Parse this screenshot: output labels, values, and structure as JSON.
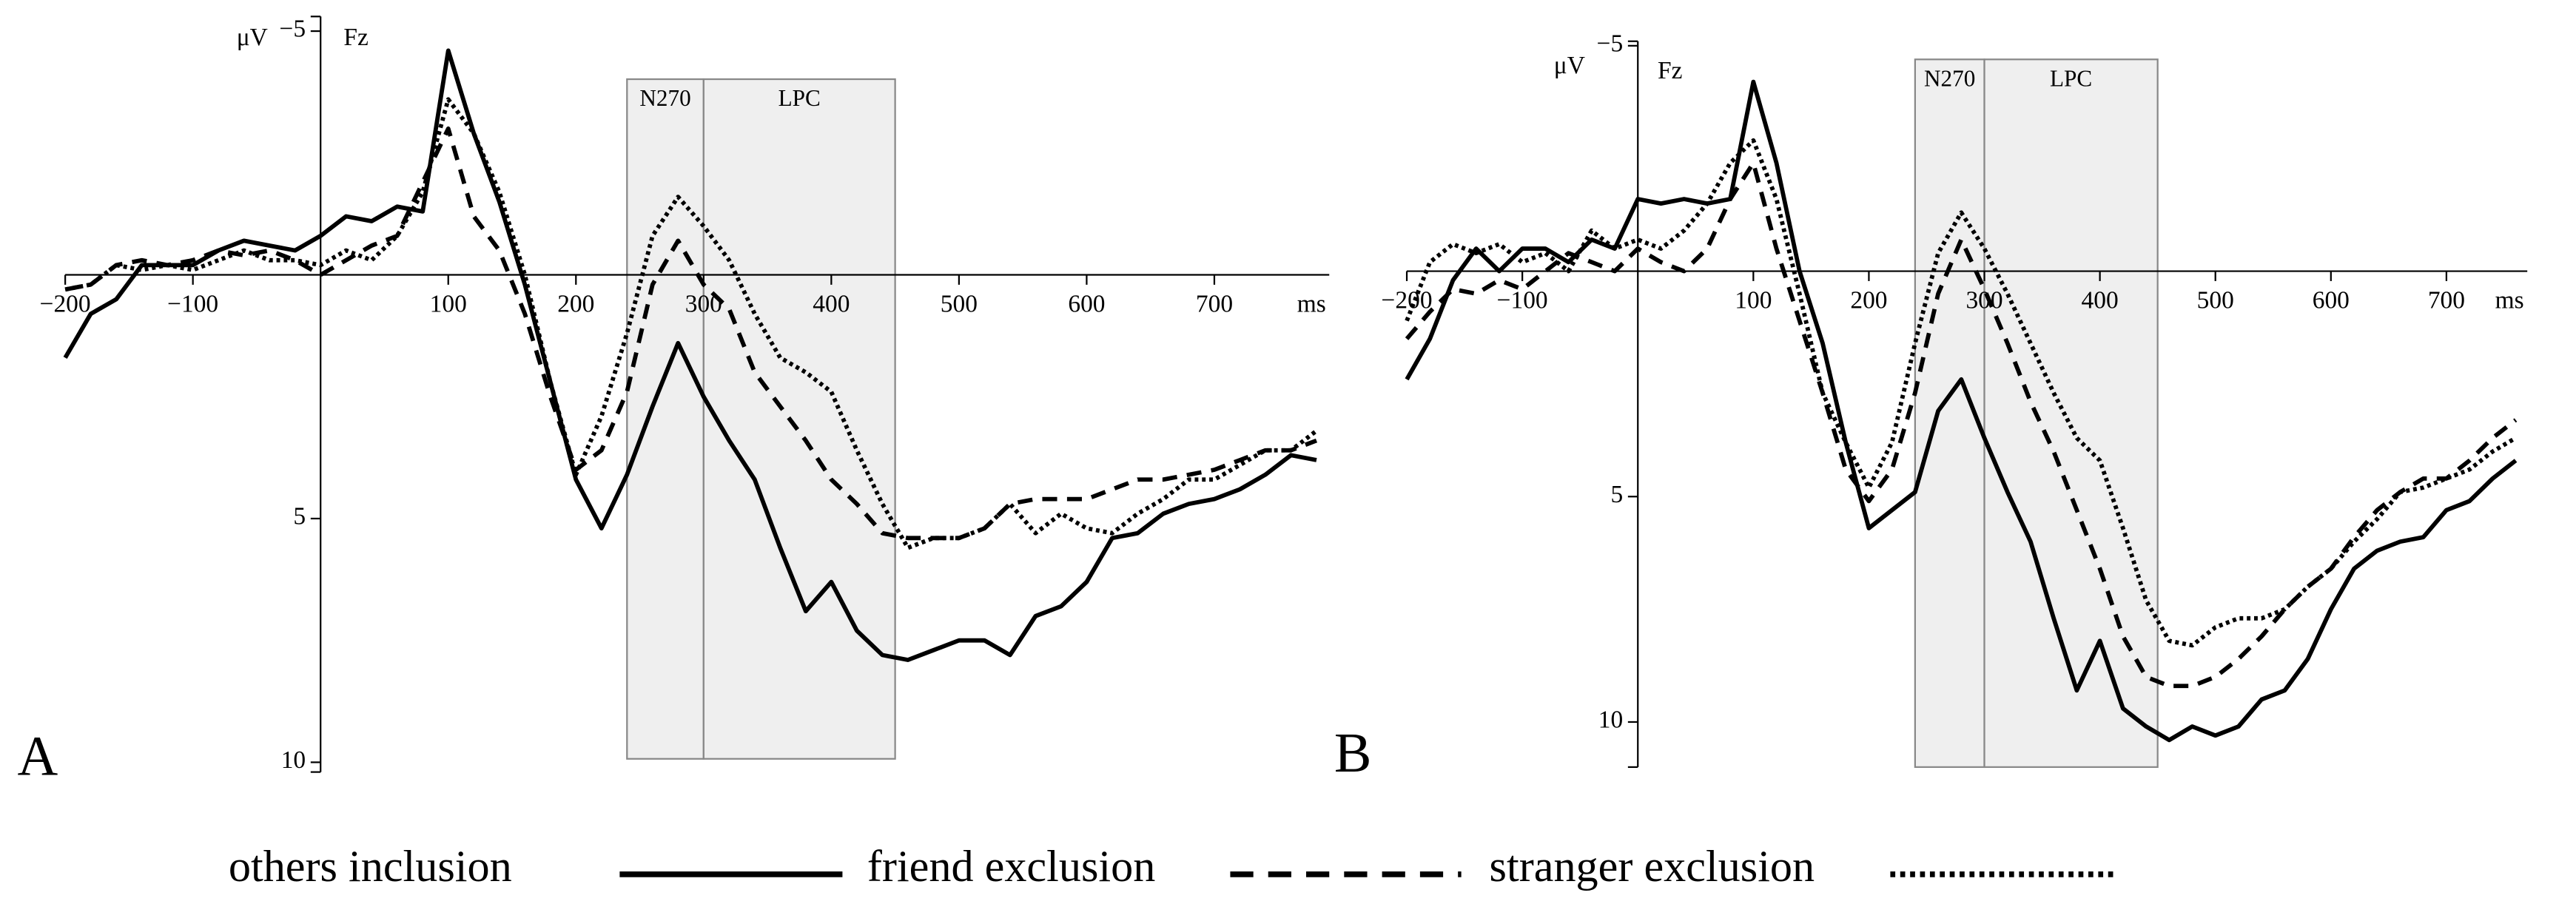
{
  "chart_data": [
    {
      "type": "line",
      "panel_label": "A",
      "channel": "Fz",
      "y_unit": "μV",
      "x_unit": "ms",
      "y_inverted": true,
      "xlim": [
        -200,
        790
      ],
      "ylim": [
        -5.3,
        10.2
      ],
      "xticks": [
        {
          "value": -200,
          "label": "−200"
        },
        {
          "value": -100,
          "label": "−100"
        },
        100,
        200,
        300,
        400,
        500,
        600,
        700
      ],
      "yticks": [
        {
          "value": -5,
          "label": "−5"
        },
        5,
        10
      ],
      "windows": [
        {
          "label": "N270",
          "start": 240,
          "end": 300
        },
        {
          "label": "LPC",
          "start": 300,
          "end": 450
        }
      ],
      "x": [
        -200,
        -180,
        -160,
        -140,
        -120,
        -100,
        -80,
        -60,
        -40,
        -20,
        0,
        20,
        40,
        60,
        80,
        100,
        120,
        140,
        160,
        180,
        200,
        220,
        240,
        260,
        280,
        300,
        320,
        340,
        360,
        380,
        400,
        420,
        440,
        460,
        480,
        500,
        520,
        540,
        560,
        580,
        600,
        620,
        640,
        660,
        680,
        700,
        720,
        740,
        760,
        780
      ],
      "series": [
        {
          "name": "others inclusion",
          "line_style": "solid",
          "color": "#000000",
          "values": [
            1.7,
            0.8,
            0.5,
            -0.2,
            -0.2,
            -0.2,
            -0.5,
            -0.7,
            -0.6,
            -0.5,
            -0.8,
            -1.2,
            -1.1,
            -1.4,
            -1.3,
            -4.6,
            -2.9,
            -1.5,
            0.2,
            2.2,
            4.2,
            5.2,
            4.1,
            2.7,
            1.4,
            2.5,
            3.4,
            4.2,
            5.6,
            6.9,
            6.3,
            7.3,
            7.8,
            7.9,
            7.7,
            7.5,
            7.5,
            7.8,
            7.0,
            6.8,
            6.3,
            5.4,
            5.3,
            4.9,
            4.7,
            4.6,
            4.4,
            4.1,
            3.7,
            3.8
          ]
        },
        {
          "name": "friend exclusion",
          "line_style": "dashed",
          "color": "#000000",
          "values": [
            0.3,
            0.2,
            -0.2,
            -0.3,
            -0.2,
            -0.3,
            -0.5,
            -0.4,
            -0.5,
            -0.3,
            0,
            -0.3,
            -0.6,
            -0.8,
            -1.9,
            -3.0,
            -1.2,
            -0.5,
            0.8,
            2.5,
            4.0,
            3.6,
            2.4,
            0.2,
            -0.7,
            0.2,
            0.7,
            2.0,
            2.7,
            3.4,
            4.2,
            4.7,
            5.3,
            5.4,
            5.4,
            5.4,
            5.2,
            4.7,
            4.6,
            4.6,
            4.6,
            4.4,
            4.2,
            4.2,
            4.1,
            4.0,
            3.8,
            3.6,
            3.6,
            3.4
          ]
        },
        {
          "name": "stranger exclusion",
          "line_style": "dotted",
          "color": "#000000",
          "values": [
            0.3,
            0.2,
            -0.2,
            -0.1,
            -0.2,
            -0.1,
            -0.3,
            -0.5,
            -0.3,
            -0.3,
            -0.2,
            -0.5,
            -0.3,
            -0.8,
            -1.7,
            -3.6,
            -2.9,
            -1.7,
            0,
            2.2,
            4.1,
            2.9,
            1.2,
            -0.8,
            -1.6,
            -1.0,
            -0.3,
            0.8,
            1.7,
            2.0,
            2.4,
            3.6,
            4.7,
            5.6,
            5.4,
            5.4,
            5.2,
            4.7,
            5.3,
            4.9,
            5.2,
            5.3,
            4.9,
            4.6,
            4.2,
            4.2,
            3.9,
            3.6,
            3.6,
            3.2
          ]
        }
      ]
    },
    {
      "type": "line",
      "panel_label": "B",
      "channel": "Fz",
      "y_unit": "μV",
      "x_unit": "ms",
      "y_inverted": true,
      "xlim": [
        -200,
        770
      ],
      "ylim": [
        -5.1,
        11
      ],
      "xticks": [
        {
          "value": -200,
          "label": "−200"
        },
        {
          "value": -100,
          "label": "−100"
        },
        100,
        200,
        300,
        400,
        500,
        600,
        700
      ],
      "yticks": [
        {
          "value": -5,
          "label": "−5"
        },
        5,
        10
      ],
      "windows": [
        {
          "label": "N270",
          "start": 240,
          "end": 300
        },
        {
          "label": "LPC",
          "start": 300,
          "end": 450
        }
      ],
      "x": [
        -200,
        -180,
        -160,
        -140,
        -120,
        -100,
        -80,
        -60,
        -40,
        -20,
        0,
        20,
        40,
        60,
        80,
        100,
        120,
        140,
        160,
        180,
        200,
        220,
        240,
        260,
        280,
        300,
        320,
        340,
        360,
        380,
        400,
        420,
        440,
        460,
        480,
        500,
        520,
        540,
        560,
        580,
        600,
        620,
        640,
        660,
        680,
        700,
        720,
        740,
        760
      ],
      "series": [
        {
          "name": "others inclusion",
          "line_style": "solid",
          "color": "#000000",
          "values": [
            2.4,
            1.5,
            0.2,
            -0.5,
            0,
            -0.5,
            -0.5,
            -0.2,
            -0.7,
            -0.5,
            -1.6,
            -1.5,
            -1.6,
            -1.5,
            -1.6,
            -4.2,
            -2.4,
            0,
            1.6,
            3.8,
            5.7,
            5.3,
            4.9,
            3.1,
            2.4,
            3.7,
            4.9,
            6.0,
            7.7,
            9.3,
            8.2,
            9.7,
            10.1,
            10.4,
            10.1,
            10.3,
            10.1,
            9.5,
            9.3,
            8.6,
            7.5,
            6.6,
            6.2,
            6.0,
            5.9,
            5.3,
            5.1,
            4.6,
            4.2
          ]
        },
        {
          "name": "friend exclusion",
          "line_style": "dashed",
          "color": "#000000",
          "values": [
            1.5,
            0.9,
            0.4,
            0.5,
            0.2,
            0.4,
            0,
            -0.4,
            -0.2,
            0,
            -0.5,
            -0.2,
            0,
            -0.5,
            -1.6,
            -2.4,
            -0.5,
            1.1,
            2.7,
            4.4,
            5.1,
            4.4,
            2.7,
            0.5,
            -0.7,
            0.4,
            1.6,
            2.9,
            4.0,
            5.3,
            6.6,
            8.1,
            9.0,
            9.2,
            9.2,
            9.0,
            8.6,
            8.1,
            7.5,
            7.0,
            6.6,
            5.9,
            5.3,
            4.9,
            4.6,
            4.6,
            4.2,
            3.7,
            3.3
          ]
        },
        {
          "name": "stranger exclusion",
          "line_style": "dotted",
          "color": "#000000",
          "values": [
            1.1,
            -0.2,
            -0.6,
            -0.4,
            -0.6,
            -0.2,
            -0.4,
            0,
            -0.9,
            -0.5,
            -0.7,
            -0.5,
            -0.9,
            -1.5,
            -2.4,
            -2.9,
            -1.6,
            0.5,
            2.7,
            3.8,
            4.8,
            3.8,
            1.6,
            -0.4,
            -1.3,
            -0.5,
            0.5,
            1.6,
            2.7,
            3.7,
            4.2,
            5.7,
            7.3,
            8.2,
            8.3,
            7.9,
            7.7,
            7.7,
            7.5,
            7.0,
            6.6,
            6.0,
            5.5,
            4.9,
            4.8,
            4.6,
            4.4,
            4.0,
            3.7
          ]
        }
      ]
    }
  ]
}
